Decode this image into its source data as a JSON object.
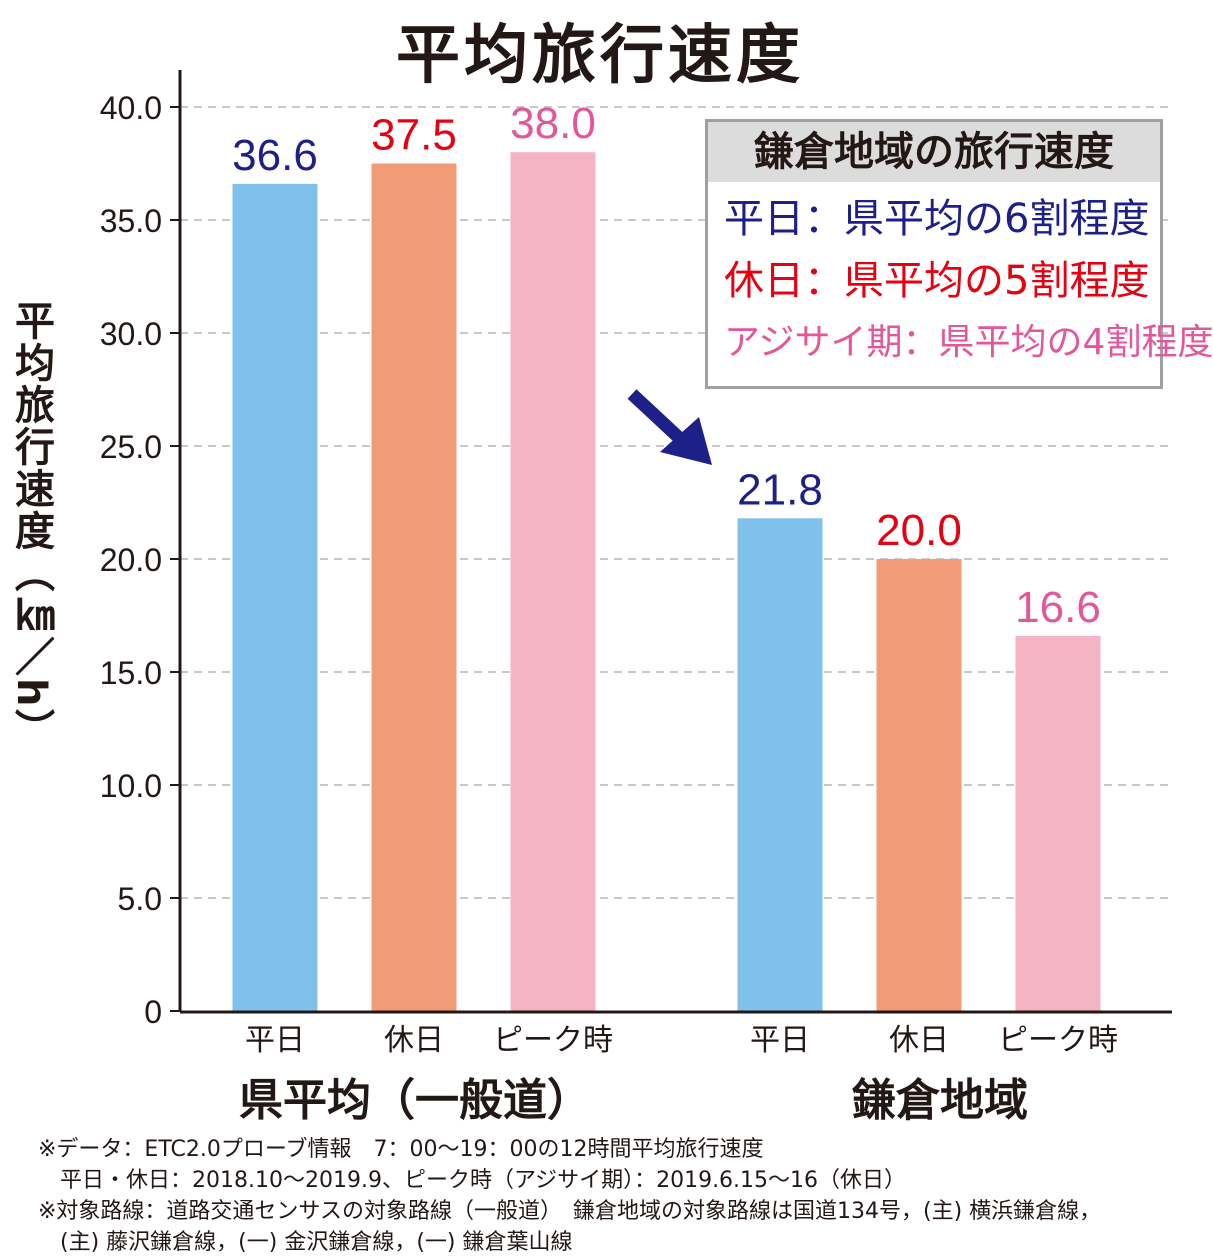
{
  "chart_data": {
    "type": "bar",
    "title": "平均旅行速度",
    "ylabel": "平均旅行速度（㎞／h）",
    "ylim": [
      0,
      40
    ],
    "yticks": [
      "0",
      "5.0",
      "10.0",
      "15.0",
      "20.0",
      "25.0",
      "30.0",
      "35.0",
      "40.0"
    ],
    "grid": true,
    "groups": [
      {
        "name": "県平均（一般道）",
        "categories": [
          "平日",
          "休日",
          "ピーク時"
        ],
        "values": [
          36.6,
          37.5,
          38.0
        ],
        "labels": [
          "36.6",
          "37.5",
          "38.0"
        ]
      },
      {
        "name": "鎌倉地域",
        "categories": [
          "平日",
          "休日",
          "ピーク時"
        ],
        "values": [
          21.8,
          20.0,
          16.6
        ],
        "labels": [
          "21.8",
          "20.0",
          "16.6"
        ]
      }
    ],
    "bar_colors": [
      "#80c1eb",
      "#f19c76",
      "#f4b4c4"
    ],
    "label_colors": [
      "#1d2088",
      "#e60012",
      "#e4569a"
    ]
  },
  "legend": {
    "header": "鎌倉地域の旅行速度",
    "items": [
      {
        "text": "平日：県平均の6割程度",
        "color": "#1d2088"
      },
      {
        "text": "休日：県平均の5割程度",
        "color": "#e60012"
      },
      {
        "text": "アジサイ期：県平均の4割程度",
        "color": "#e4569a"
      }
    ]
  },
  "notes": [
    "※データ：ETC2.0プローブ情報　7：00～19：00の12時間平均旅行速度",
    "　平日・休日：2018.10～2019.9、ピーク時（アジサイ期）：2019.6.15～16（休日）",
    "※対象路線：道路交通センサスの対象路線（一般道）　鎌倉地域の対象路線は国道134号，(主) 横浜鎌倉線，",
    "　(主) 藤沢鎌倉線，(一) 金沢鎌倉線，(一) 鎌倉葉山線"
  ],
  "arrow_color": "#1d2088"
}
